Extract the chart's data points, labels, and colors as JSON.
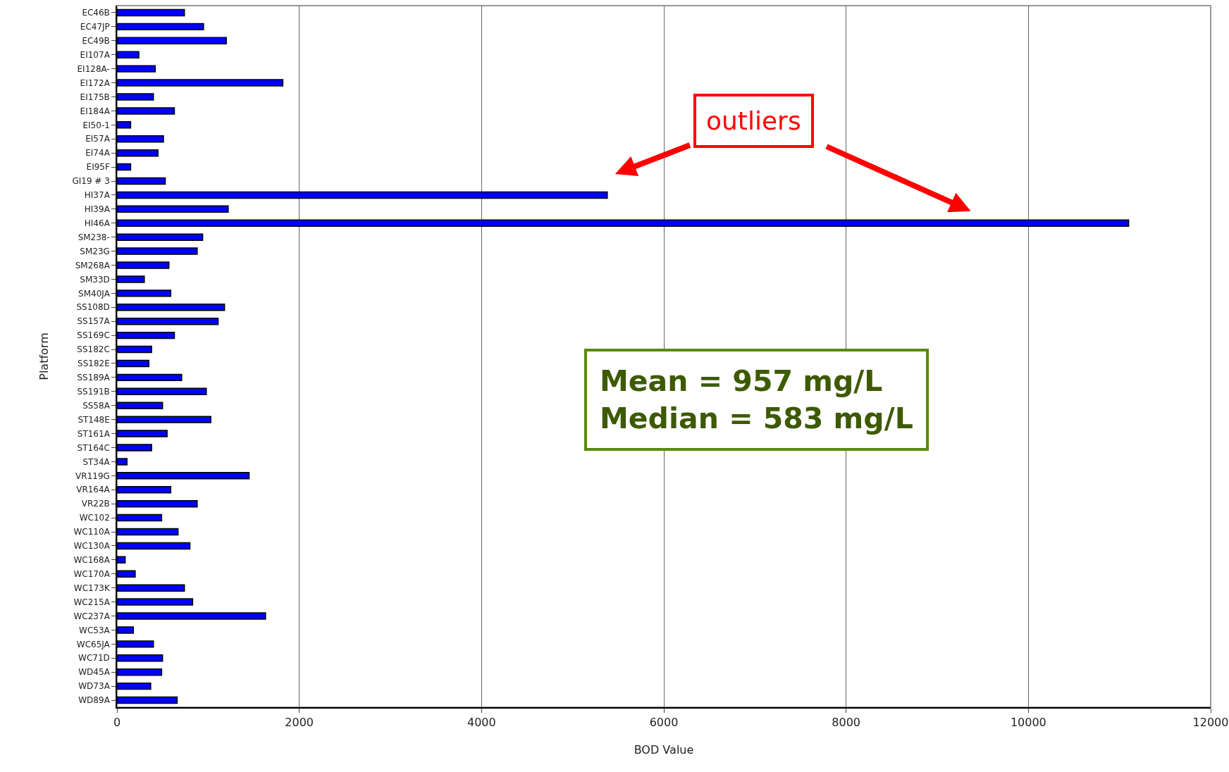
{
  "chart_data": {
    "type": "bar",
    "orientation": "horizontal",
    "xlabel": "BOD Value",
    "ylabel": "Platform",
    "categories": [
      "EC46B",
      "EC47JP",
      "EC49B",
      "EI107A",
      "EI128A-",
      "EI172A",
      "EI175B",
      "EI184A",
      "EI50-1",
      "EI57A",
      "EI74A",
      "EI95F",
      "GI19 # 3",
      "HI37A",
      "HI39A",
      "HI46A",
      "SM238-",
      "SM23G",
      "SM268A",
      "SM33D",
      "SM40JA",
      "SS108D",
      "SS157A",
      "SS169C",
      "SS182C",
      "SS182E",
      "SS189A",
      "SS191B",
      "SS58A",
      "ST148E",
      "ST161A",
      "ST164C",
      "ST34A",
      "VR119G",
      "VR164A",
      "VR22B",
      "WC102",
      "WC110A",
      "WC130A",
      "WC168A",
      "WC170A",
      "WC173K",
      "WC215A",
      "WC237A",
      "WC53A",
      "WC65JA",
      "WC71D",
      "WD45A",
      "WD73A",
      "WD89A"
    ],
    "values": [
      740,
      950,
      1200,
      240,
      420,
      1820,
      400,
      630,
      150,
      510,
      450,
      150,
      530,
      5380,
      1220,
      11100,
      940,
      880,
      570,
      300,
      590,
      1180,
      1110,
      630,
      380,
      350,
      710,
      980,
      500,
      1030,
      550,
      380,
      110,
      1450,
      590,
      880,
      490,
      670,
      800,
      90,
      200,
      740,
      830,
      1630,
      180,
      400,
      500,
      490,
      370,
      660
    ],
    "color": "#0000ff",
    "xlim": [
      0,
      12000
    ],
    "xticks": [
      0,
      2000,
      4000,
      6000,
      8000,
      10000,
      12000
    ],
    "grid": "x",
    "annotations": [
      "outliers",
      "Mean = 957 mg/L\nMedian = 583 mg/L"
    ]
  }
}
